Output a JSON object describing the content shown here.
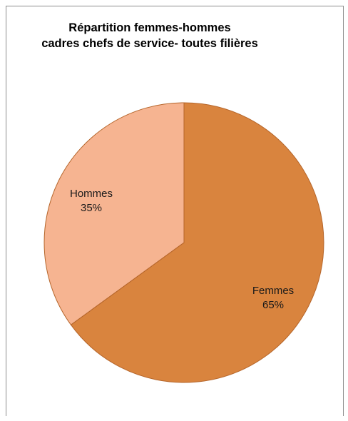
{
  "chart_data": {
    "type": "pie",
    "title_lines": [
      "Répartition femmes-hommes",
      "cadres chefs de service- toutes filières"
    ],
    "slices": [
      {
        "label": "Femmes",
        "value": 65,
        "value_label": "65%",
        "color": "#d9843e"
      },
      {
        "label": "Hommes",
        "value": 35,
        "value_label": "35%",
        "color": "#f6b491"
      }
    ],
    "slice_border_color": "#b5652a"
  }
}
